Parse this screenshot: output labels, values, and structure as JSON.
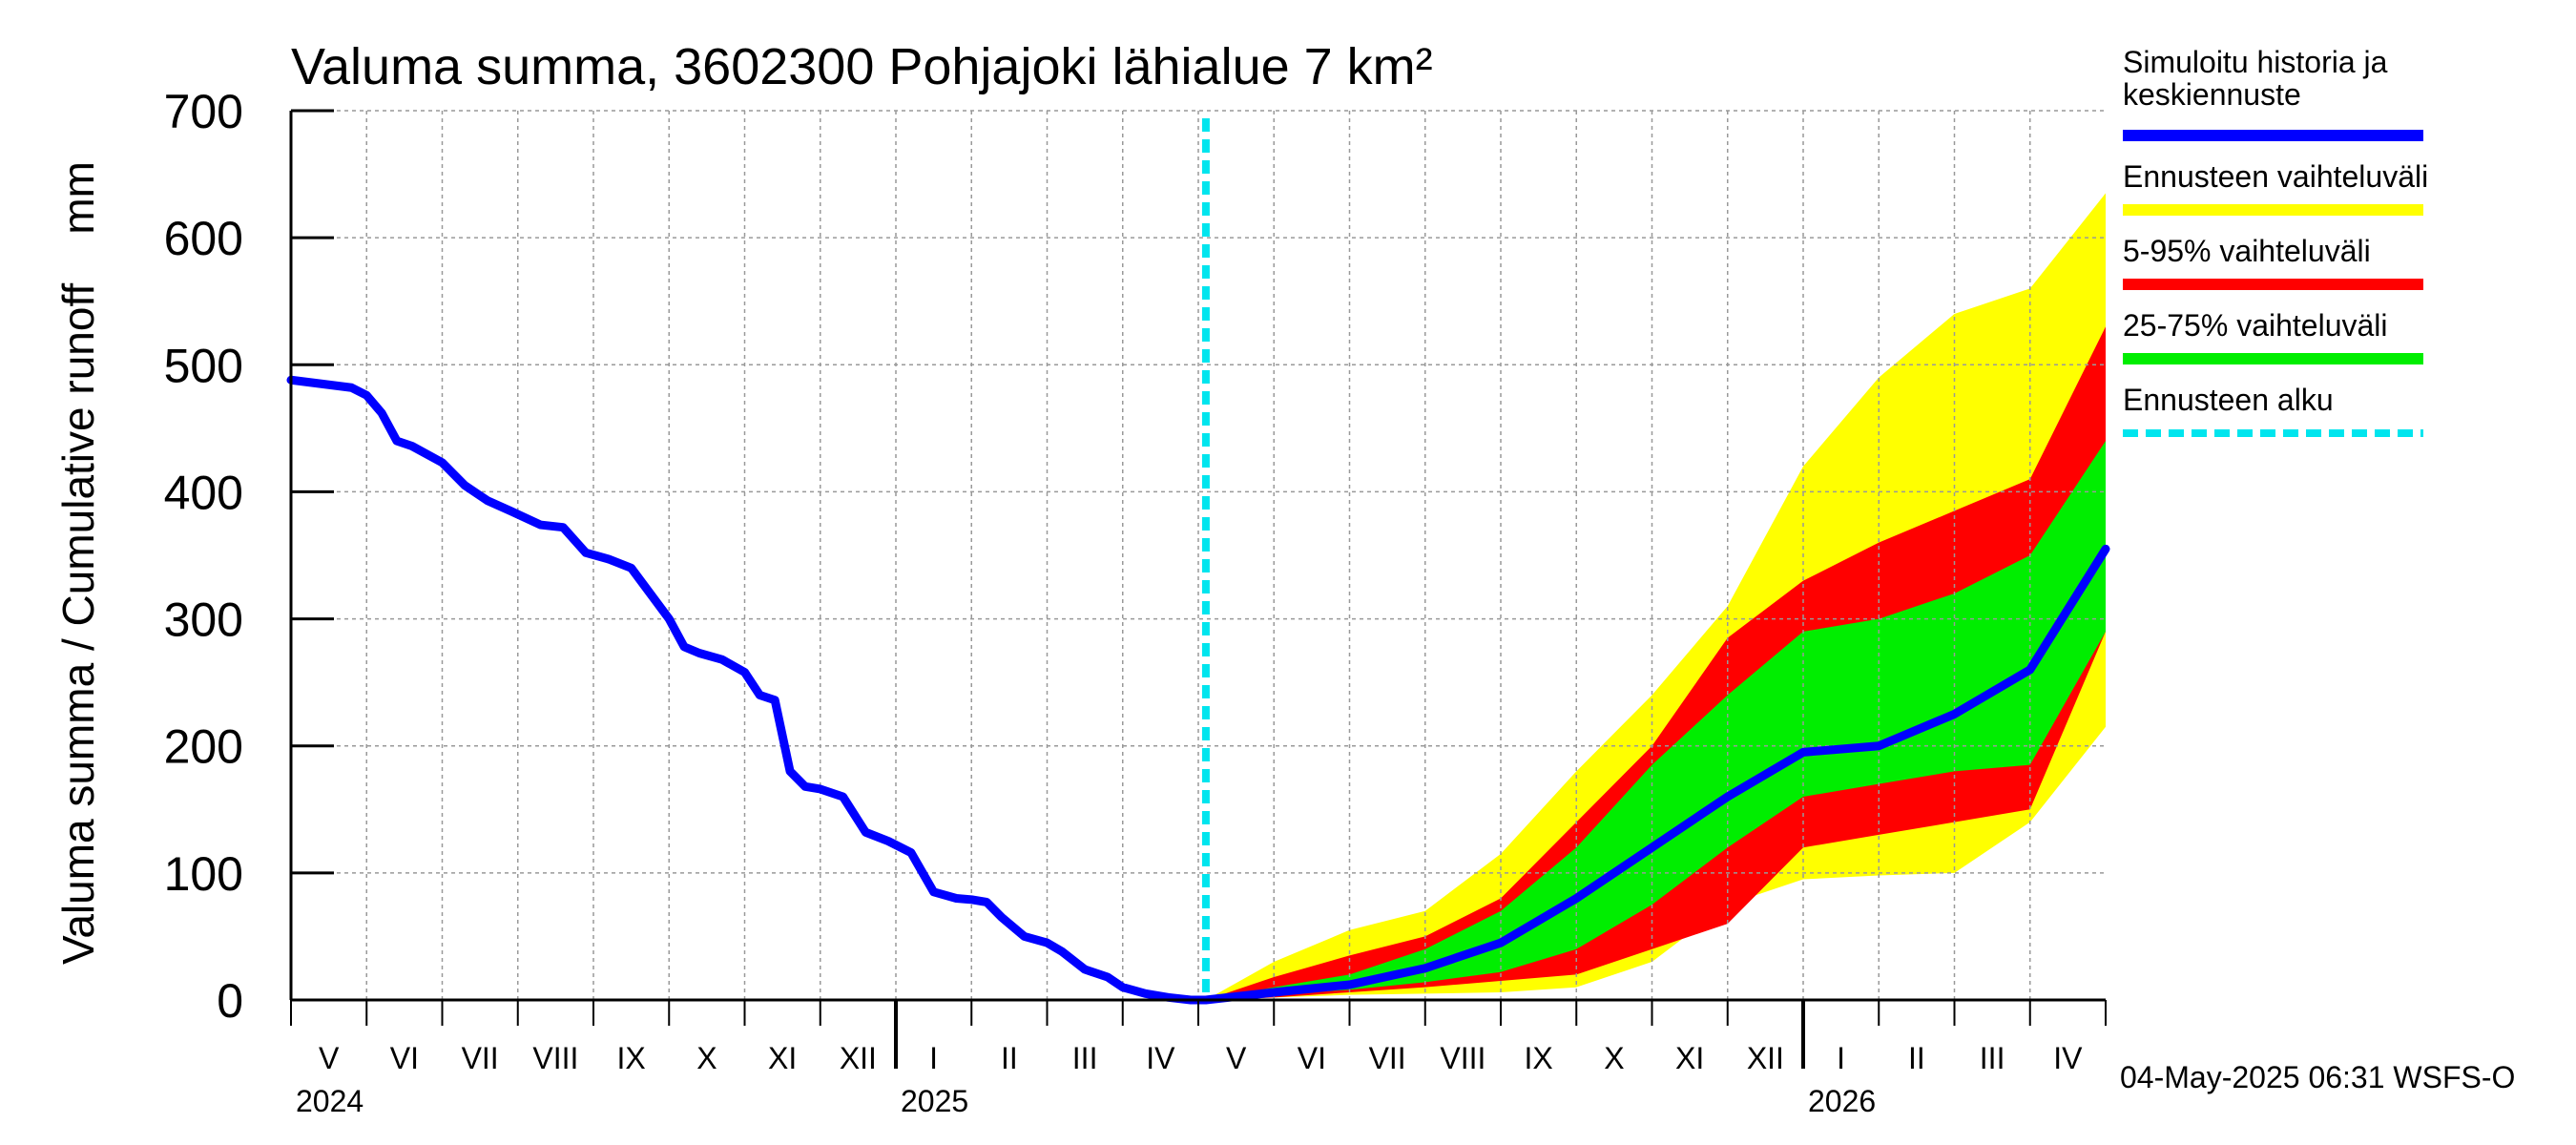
{
  "chart_data": {
    "type": "area",
    "title": "Valuma summa, 3602300 Pohjajoki lähialue 7 km²",
    "ylabel": "Valuma summa / Cumulative runoff    mm",
    "xlabel": "",
    "ylim": [
      0,
      700
    ],
    "yticks": [
      "0",
      "100",
      "200",
      "300",
      "400",
      "500",
      "600",
      "700"
    ],
    "month_labels": [
      "V",
      "VI",
      "VII",
      "VIII",
      "IX",
      "X",
      "XI",
      "XII",
      "I",
      "II",
      "III",
      "IV",
      "V",
      "VI",
      "VII",
      "VIII",
      "IX",
      "X",
      "XI",
      "XII",
      "I",
      "II",
      "III",
      "IV"
    ],
    "year_labels": [
      "2024",
      "2025",
      "2026"
    ],
    "x_unit": "months since 2024-05-01",
    "forecast_start": 12.1,
    "x_max": 24,
    "history": {
      "x": [
        0,
        0.4,
        0.8,
        1.0,
        1.2,
        1.4,
        1.6,
        2.0,
        2.3,
        2.6,
        2.9,
        3.3,
        3.6,
        3.9,
        4.2,
        4.5,
        4.9,
        5.0,
        5.2,
        5.4,
        5.7,
        6.0,
        6.2,
        6.4,
        6.6,
        6.8,
        7.0,
        7.3,
        7.6,
        7.9,
        8.0,
        8.2,
        8.5,
        8.8,
        9.0,
        9.2,
        9.4,
        9.7,
        10.0,
        10.2,
        10.5,
        10.8,
        11.0,
        11.3,
        11.6,
        11.9,
        12.1
      ],
      "values": [
        488,
        485,
        482,
        476,
        462,
        440,
        436,
        423,
        405,
        393,
        385,
        374,
        372,
        352,
        347,
        340,
        308,
        300,
        278,
        273,
        268,
        258,
        240,
        236,
        180,
        168,
        166,
        160,
        132,
        125,
        122,
        116,
        85,
        80,
        79,
        77,
        65,
        50,
        45,
        38,
        24,
        18,
        10,
        5,
        2,
        0,
        0
      ]
    },
    "forecast": {
      "x": [
        12.1,
        13,
        14,
        15,
        16,
        17,
        18,
        19,
        20,
        21,
        22,
        23,
        24
      ],
      "min": [
        0,
        2,
        4,
        5,
        6,
        10,
        30,
        75,
        95,
        98,
        100,
        140,
        215
      ],
      "p5": [
        0,
        2,
        6,
        10,
        15,
        20,
        40,
        60,
        120,
        130,
        140,
        150,
        290
      ],
      "p25": [
        0,
        4,
        8,
        14,
        22,
        40,
        75,
        120,
        160,
        170,
        180,
        185,
        290
      ],
      "median": [
        0,
        6,
        12,
        25,
        45,
        80,
        120,
        160,
        195,
        200,
        225,
        260,
        355
      ],
      "p75": [
        0,
        10,
        20,
        40,
        70,
        120,
        185,
        240,
        290,
        300,
        320,
        350,
        440
      ],
      "p95": [
        0,
        18,
        35,
        50,
        80,
        140,
        200,
        285,
        330,
        360,
        385,
        410,
        530
      ],
      "max": [
        0,
        30,
        55,
        70,
        115,
        180,
        240,
        310,
        420,
        490,
        540,
        560,
        635
      ]
    },
    "legend": [
      {
        "label": "Simuloitu historia ja keskiennuste",
        "color": "#0000ff",
        "style": "solid"
      },
      {
        "label": "Ennusteen vaihteluväli",
        "color": "#ffff00",
        "style": "solid"
      },
      {
        "label": "5-95% vaihteluväli",
        "color": "#ff0000",
        "style": "solid"
      },
      {
        "label": "25-75% vaihteluväli",
        "color": "#00ee00",
        "style": "solid"
      },
      {
        "label": "Ennusteen alku",
        "color": "#00e5ee",
        "style": "dashed"
      }
    ],
    "legend_placement": "right"
  },
  "footer": "04-May-2025 06:31 WSFS-O",
  "colors": {
    "history": "#0000ff",
    "range": "#ffff00",
    "p5_95": "#ff0000",
    "p25_75": "#00ee00",
    "forecast_start": "#00e5ee",
    "grid": "#999999"
  }
}
